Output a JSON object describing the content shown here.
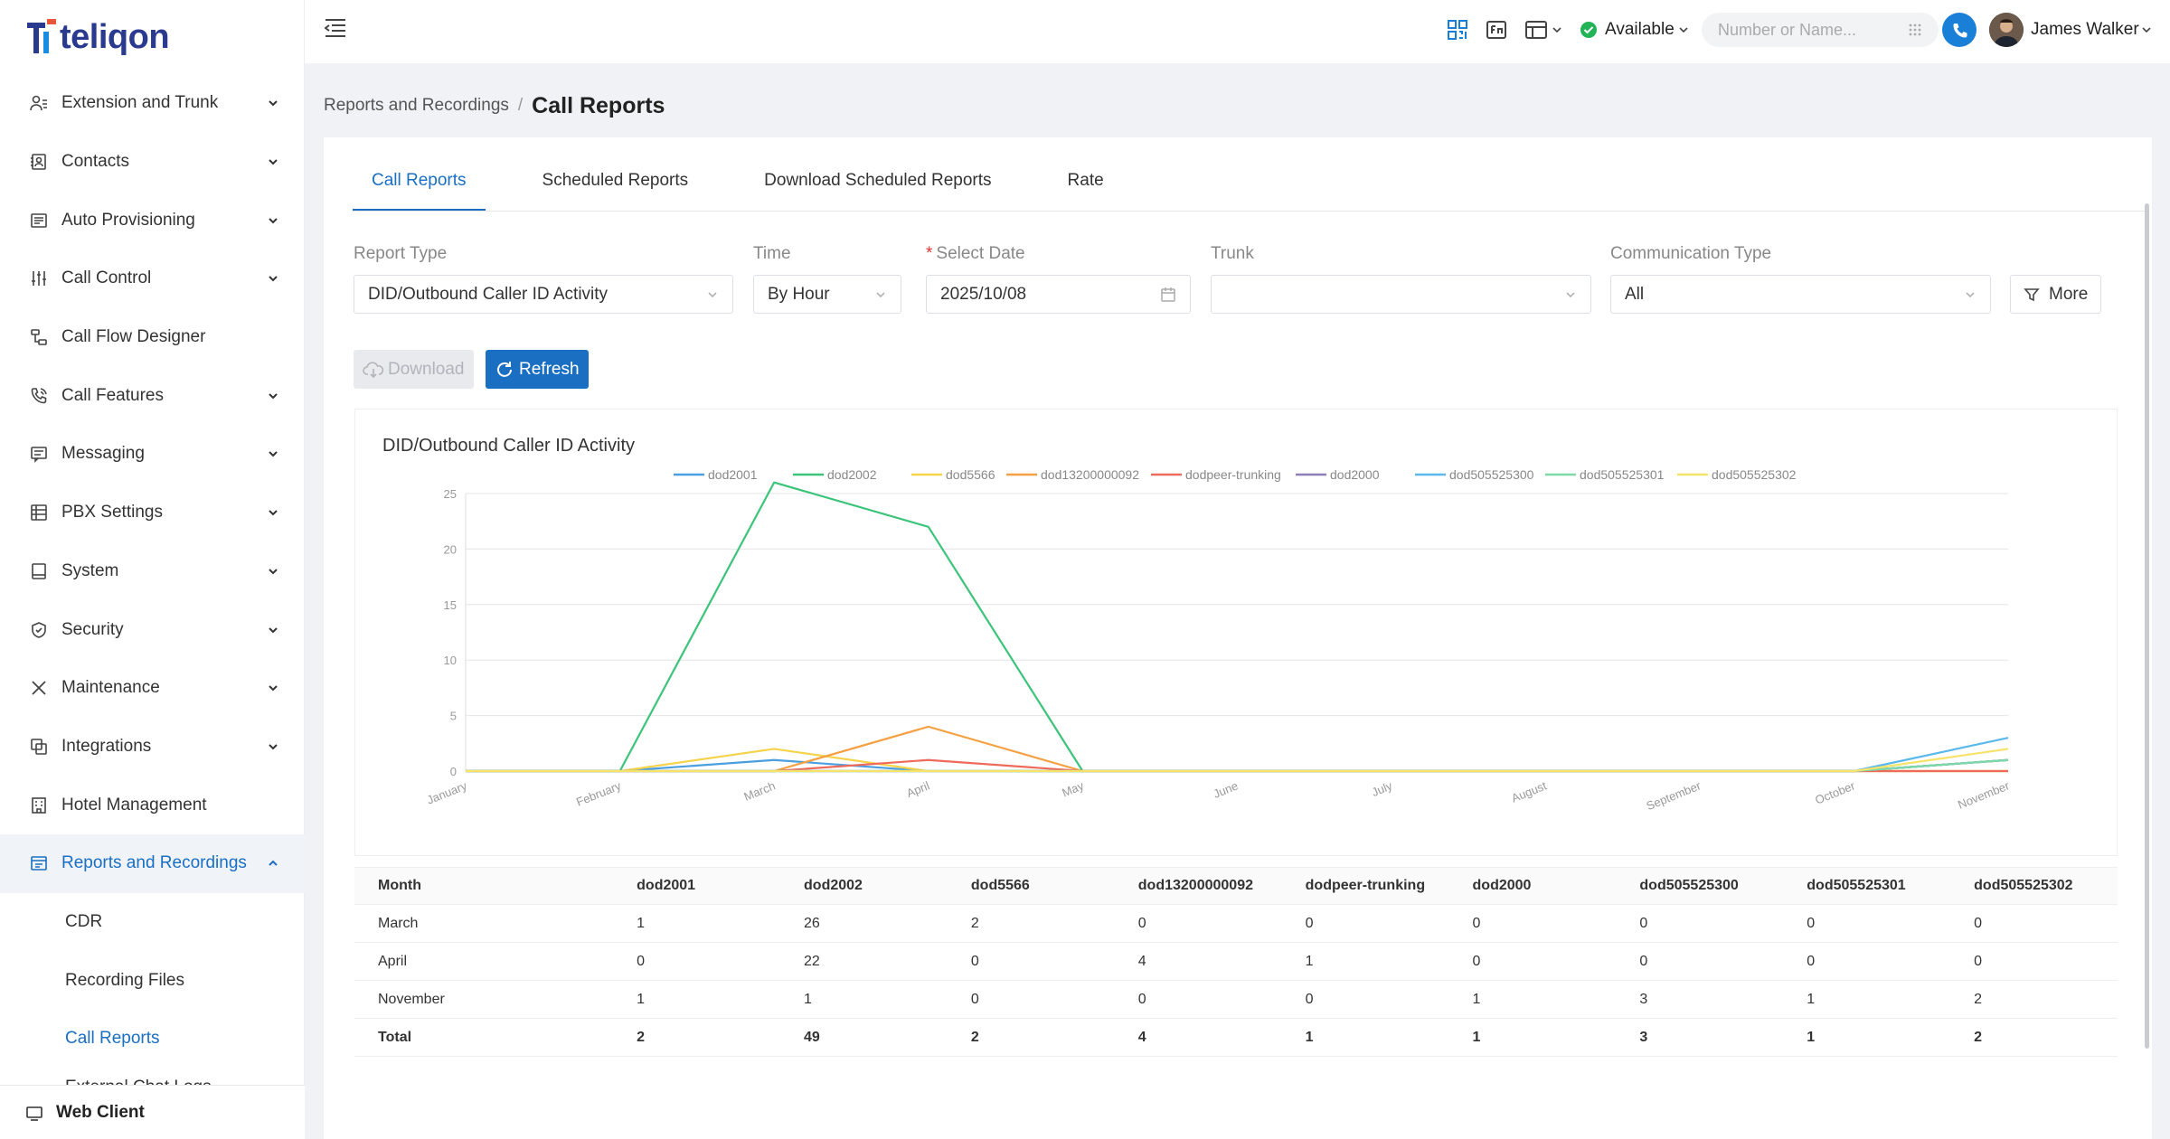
{
  "brand": {
    "name": "teliqon",
    "color": "#2a3b8f",
    "accent": "#1a6fc2"
  },
  "sidebar": {
    "items": [
      {
        "label": "Extension and Trunk",
        "icon": "user-list-icon",
        "expandable": true
      },
      {
        "label": "Contacts",
        "icon": "contacts-book-icon",
        "expandable": true
      },
      {
        "label": "Auto Provisioning",
        "icon": "provision-icon",
        "expandable": true
      },
      {
        "label": "Call Control",
        "icon": "sliders-icon",
        "expandable": true
      },
      {
        "label": "Call Flow Designer",
        "icon": "flow-icon",
        "expandable": false
      },
      {
        "label": "Call Features",
        "icon": "phone-icon",
        "expandable": true
      },
      {
        "label": "Messaging",
        "icon": "message-icon",
        "expandable": true
      },
      {
        "label": "PBX Settings",
        "icon": "settings-grid-icon",
        "expandable": true
      },
      {
        "label": "System",
        "icon": "monitor-icon",
        "expandable": true
      },
      {
        "label": "Security",
        "icon": "shield-icon",
        "expandable": true
      },
      {
        "label": "Maintenance",
        "icon": "tools-icon",
        "expandable": true
      },
      {
        "label": "Integrations",
        "icon": "integration-icon",
        "expandable": true
      },
      {
        "label": "Hotel Management",
        "icon": "hotel-icon",
        "expandable": false
      },
      {
        "label": "Reports and Recordings",
        "icon": "report-icon",
        "expandable": true
      }
    ],
    "sub_items": [
      "CDR",
      "Recording Files",
      "Call Reports",
      "External Chat Logs"
    ],
    "web_client": "Web Client"
  },
  "topbar": {
    "status": "Available",
    "search_placeholder": "Number or Name...",
    "user_name": "James Walker"
  },
  "breadcrumb": {
    "parent": "Reports and Recordings",
    "separator": "/",
    "current": "Call Reports"
  },
  "tabs": [
    "Call Reports",
    "Scheduled Reports",
    "Download Scheduled Reports",
    "Rate"
  ],
  "filters": {
    "report_type": {
      "label": "Report Type",
      "value": "DID/Outbound Caller ID Activity"
    },
    "time": {
      "label": "Time",
      "value": "By Hour"
    },
    "select_date": {
      "label": "Select Date",
      "required_mark": "*",
      "value": "2025/10/08"
    },
    "trunk": {
      "label": "Trunk",
      "value": ""
    },
    "communication_type": {
      "label": "Communication Type",
      "value": "All"
    },
    "more": "More"
  },
  "actions": {
    "download": "Download",
    "refresh": "Refresh"
  },
  "chart_data": {
    "type": "line",
    "title": "DID/Outbound Caller ID Activity",
    "categories": [
      "January",
      "February",
      "March",
      "April",
      "May",
      "June",
      "July",
      "August",
      "September",
      "October",
      "November"
    ],
    "ylim": [
      0,
      25
    ],
    "yticks": [
      0,
      5,
      10,
      15,
      20,
      25
    ],
    "grid": true,
    "legend_position": "top",
    "series": [
      {
        "name": "dod2001",
        "color": "#4a9fe0",
        "values": [
          0,
          0,
          1,
          0,
          0,
          0,
          0,
          0,
          0,
          0,
          1
        ]
      },
      {
        "name": "dod2002",
        "color": "#3cc47a",
        "values": [
          0,
          0,
          26,
          22,
          0,
          0,
          0,
          0,
          0,
          0,
          1
        ]
      },
      {
        "name": "dod5566",
        "color": "#f5d34a",
        "values": [
          0,
          0,
          2,
          0,
          0,
          0,
          0,
          0,
          0,
          0,
          0
        ]
      },
      {
        "name": "dod13200000092",
        "color": "#f5a042",
        "values": [
          0,
          0,
          0,
          4,
          0,
          0,
          0,
          0,
          0,
          0,
          0
        ]
      },
      {
        "name": "dodpeer-trunking",
        "color": "#ee6a5a",
        "values": [
          0,
          0,
          0,
          1,
          0,
          0,
          0,
          0,
          0,
          0,
          0
        ]
      },
      {
        "name": "dod2000",
        "color": "#8e7fb8",
        "values": [
          0,
          0,
          0,
          0,
          0,
          0,
          0,
          0,
          0,
          0,
          1
        ]
      },
      {
        "name": "dod505525300",
        "color": "#5bb8ea",
        "values": [
          0,
          0,
          0,
          0,
          0,
          0,
          0,
          0,
          0,
          0,
          3
        ]
      },
      {
        "name": "dod505525301",
        "color": "#7dd9a8",
        "values": [
          0,
          0,
          0,
          0,
          0,
          0,
          0,
          0,
          0,
          0,
          1
        ]
      },
      {
        "name": "dod505525302",
        "color": "#f7e26a",
        "values": [
          0,
          0,
          0,
          0,
          0,
          0,
          0,
          0,
          0,
          0,
          2
        ]
      }
    ]
  },
  "table": {
    "headers": [
      "Month",
      "dod2001",
      "dod2002",
      "dod5566",
      "dod13200000092",
      "dodpeer-trunking",
      "dod2000",
      "dod505525300",
      "dod505525301",
      "dod505525302"
    ],
    "rows": [
      [
        "March",
        "1",
        "26",
        "2",
        "0",
        "0",
        "0",
        "0",
        "0",
        "0"
      ],
      [
        "April",
        "0",
        "22",
        "0",
        "4",
        "1",
        "0",
        "0",
        "0",
        "0"
      ],
      [
        "November",
        "1",
        "1",
        "0",
        "0",
        "0",
        "1",
        "3",
        "1",
        "2"
      ]
    ],
    "total": [
      "Total",
      "2",
      "49",
      "2",
      "4",
      "1",
      "1",
      "3",
      "1",
      "2"
    ]
  }
}
